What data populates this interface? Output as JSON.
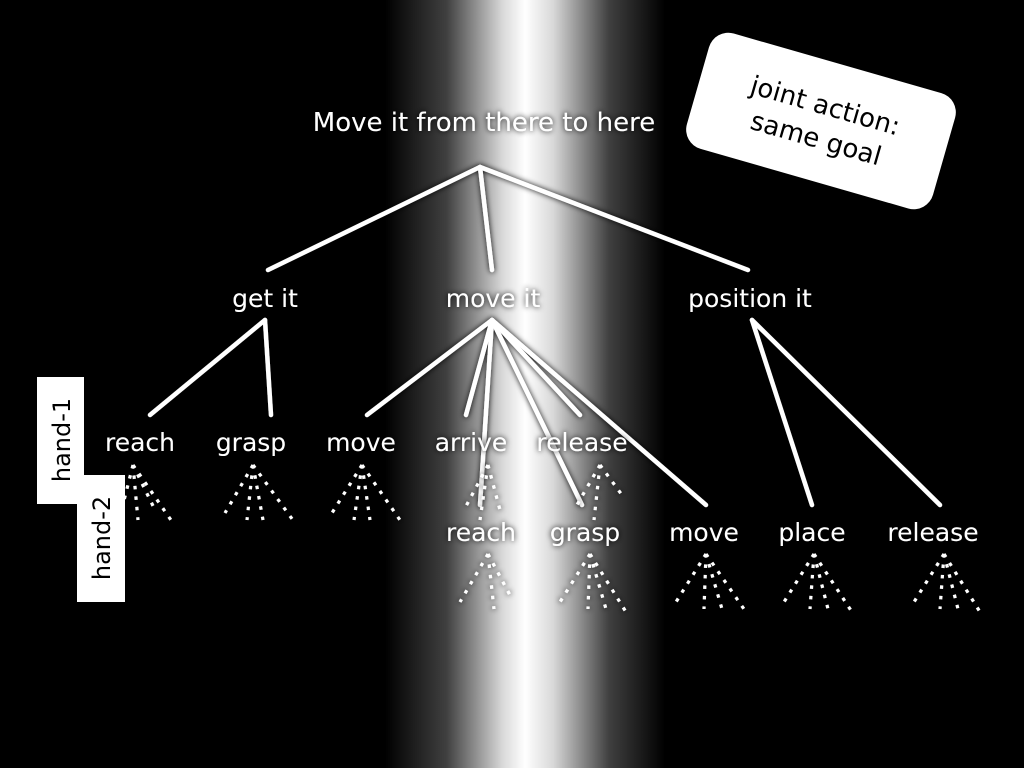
{
  "goal": {
    "label": "Move it from there to here"
  },
  "subgoals": [
    {
      "id": "get",
      "label": "get it"
    },
    {
      "id": "move",
      "label": "move it"
    },
    {
      "id": "position",
      "label": "position it"
    }
  ],
  "hand1_actions": [
    {
      "id": "h1-reach",
      "label": "reach"
    },
    {
      "id": "h1-grasp",
      "label": "grasp"
    },
    {
      "id": "h1-move",
      "label": "move"
    },
    {
      "id": "h1-arrive",
      "label": "arrive"
    },
    {
      "id": "h1-release",
      "label": "release"
    }
  ],
  "hand2_actions": [
    {
      "id": "h2-reach",
      "label": "reach"
    },
    {
      "id": "h2-grasp",
      "label": "grasp"
    },
    {
      "id": "h2-move",
      "label": "move"
    },
    {
      "id": "h2-place",
      "label": "place"
    },
    {
      "id": "h2-release",
      "label": "release"
    }
  ],
  "labels": {
    "hand1": "hand-1",
    "hand2": "hand-2"
  },
  "callout": {
    "line1": "joint action:",
    "line2": "same goal"
  },
  "colors": {
    "background": "#000000",
    "highlight": "#ffffff",
    "text": "#ffffff"
  }
}
